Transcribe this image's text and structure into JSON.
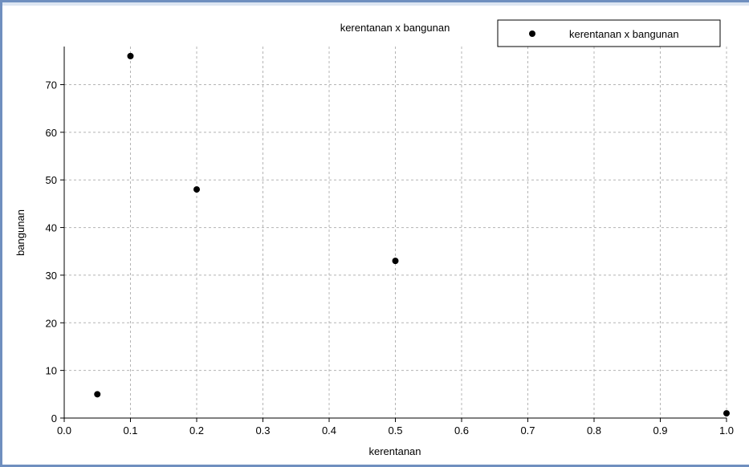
{
  "chart_data": {
    "type": "scatter",
    "title": "kerentanan x bangunan",
    "xlabel": "kerentanan",
    "ylabel": "bangunan",
    "xlim": [
      0,
      1
    ],
    "ylim": [
      0,
      78
    ],
    "xticks": [
      "0.0",
      "0.1",
      "0.2",
      "0.3",
      "0.4",
      "0.5",
      "0.6",
      "0.7",
      "0.8",
      "0.9",
      "1.0"
    ],
    "yticks": [
      "0",
      "10",
      "20",
      "30",
      "40",
      "50",
      "60",
      "70"
    ],
    "grid": true,
    "legend": "top-right",
    "series": [
      {
        "name": "kerentanan x bangunan",
        "color": "#000000",
        "points": [
          {
            "x": 0.05,
            "y": 5
          },
          {
            "x": 0.1,
            "y": 76
          },
          {
            "x": 0.2,
            "y": 48
          },
          {
            "x": 0.5,
            "y": 33
          },
          {
            "x": 1.0,
            "y": 1
          }
        ]
      }
    ]
  }
}
